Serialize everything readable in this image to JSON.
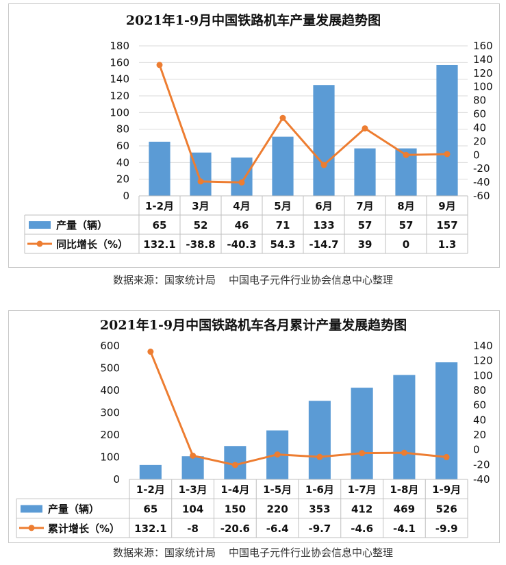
{
  "chart_data": [
    {
      "type": "bar+line",
      "title": "2021年1-9月中国铁路机车产量发展趋势图",
      "categories": [
        "1-2月",
        "3月",
        "4月",
        "5月",
        "6月",
        "7月",
        "8月",
        "9月"
      ],
      "series": [
        {
          "name": "产量（辆）",
          "type": "bar",
          "axis": "left",
          "values": [
            65,
            52,
            46,
            71,
            133,
            57,
            57,
            157
          ],
          "labels": [
            "65",
            "52",
            "46",
            "71",
            "133",
            "57",
            "57",
            "157"
          ],
          "color": "#5b9bd5"
        },
        {
          "name": "同比增长（%）",
          "type": "line",
          "axis": "right",
          "values": [
            132.1,
            -38.8,
            -40.3,
            54.3,
            -14.7,
            39,
            0,
            1.3
          ],
          "labels": [
            "132.1",
            "-38.8",
            "-40.3",
            "54.3",
            "-14.7",
            "39",
            "0",
            "1.3"
          ],
          "color": "#ed7d31"
        }
      ],
      "y_left": {
        "min": 0,
        "max": 180,
        "step": 20
      },
      "y_right": {
        "min": -60,
        "max": 160,
        "step": 20
      },
      "grid": true,
      "legend": "data-table"
    },
    {
      "type": "bar+line",
      "title": "2021年1-9月中国铁路机车各月累计产量发展趋势图",
      "categories": [
        "1-2月",
        "1-3月",
        "1-4月",
        "1-5月",
        "1-6月",
        "1-7月",
        "1-8月",
        "1-9月"
      ],
      "series": [
        {
          "name": "产量（辆）",
          "type": "bar",
          "axis": "left",
          "values": [
            65,
            104,
            150,
            220,
            353,
            412,
            469,
            526
          ],
          "labels": [
            "65",
            "104",
            "150",
            "220",
            "353",
            "412",
            "469",
            "526"
          ],
          "color": "#5b9bd5"
        },
        {
          "name": "累计增长（%）",
          "type": "line",
          "axis": "right",
          "values": [
            132.1,
            -8,
            -20.6,
            -6.4,
            -9.7,
            -4.6,
            -4.1,
            -9.9
          ],
          "labels": [
            "132.1",
            "-8",
            "-20.6",
            "-6.4",
            "-9.7",
            "-4.6",
            "-4.1",
            "-9.9"
          ],
          "color": "#ed7d31"
        }
      ],
      "y_left": {
        "min": 0,
        "max": 600,
        "step": 100
      },
      "y_right": {
        "min": -40,
        "max": 140,
        "step": 20
      },
      "grid": false,
      "legend": "data-table"
    }
  ],
  "sources": [
    "数据来源：国家统计局    中国电子元件行业协会信息中心整理",
    "数据来源：国家统计局    中国电子元件行业协会信息中心整理"
  ]
}
